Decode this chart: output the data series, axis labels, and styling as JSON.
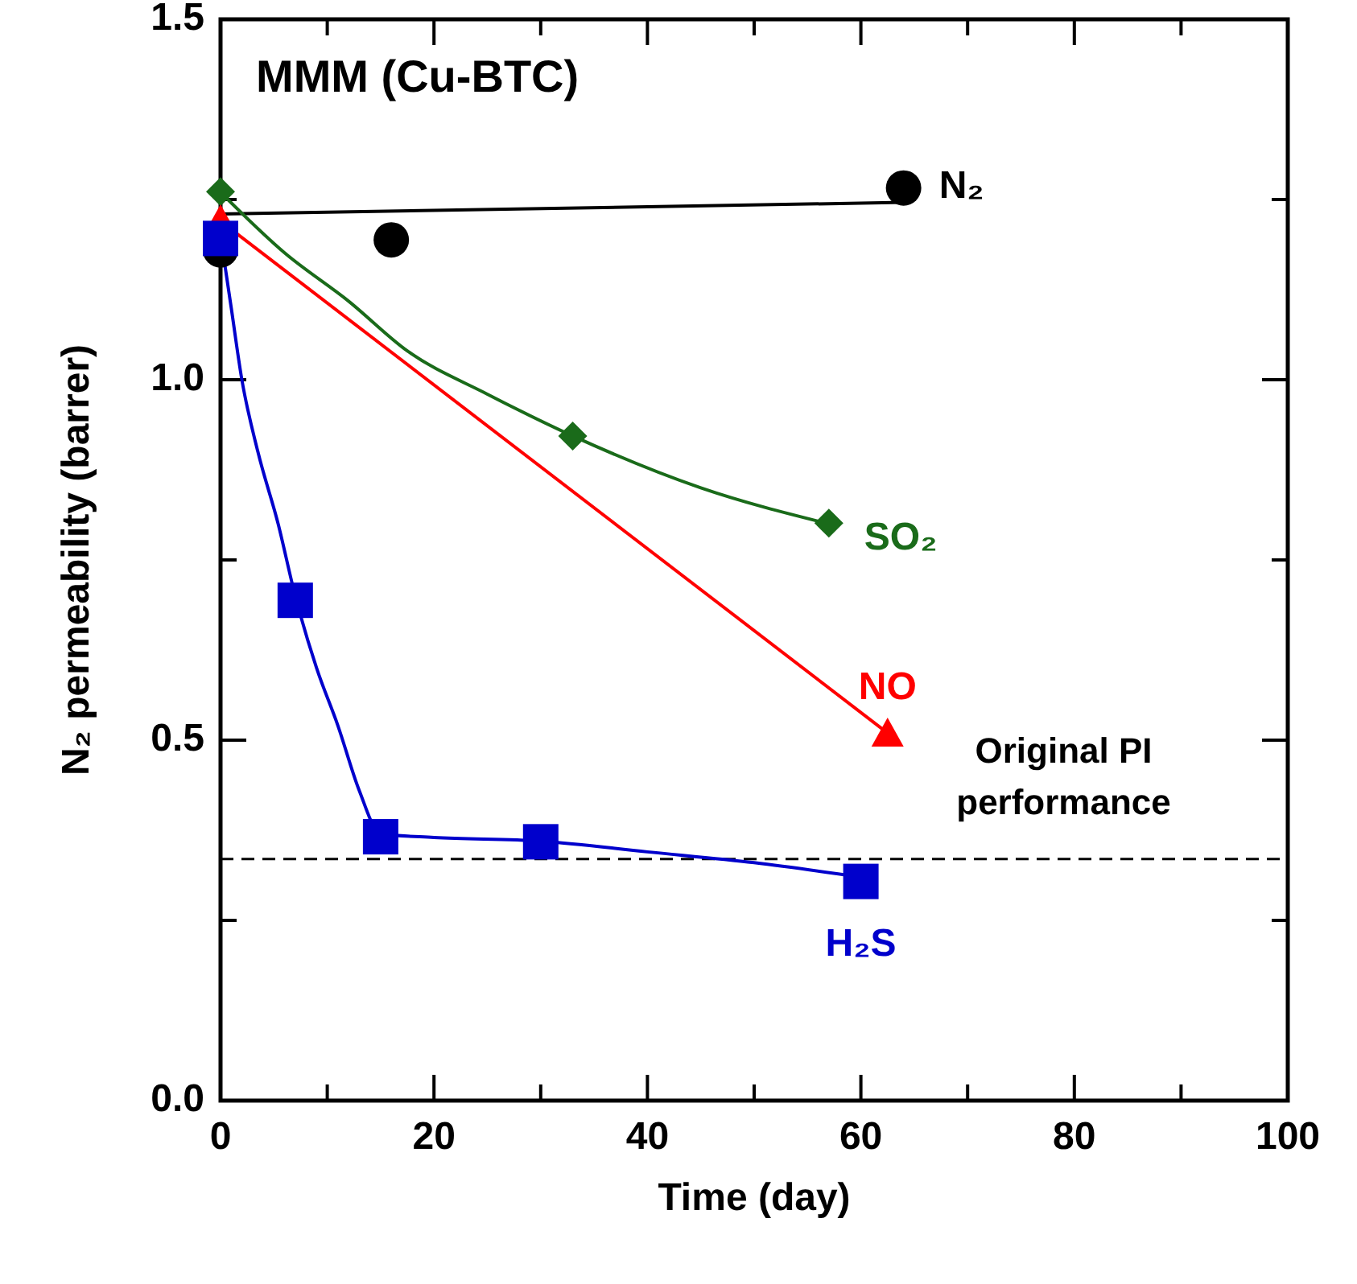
{
  "chart_data": {
    "type": "scatter",
    "title": "MMM (Cu-BTC)",
    "xlabel": "Time (day)",
    "ylabel": "N₂ permeability (barrer)",
    "xlim": [
      0,
      100
    ],
    "xticks": [
      0,
      {
        "value": 10,
        "label": null
      },
      20,
      {
        "value": 30,
        "label": null
      },
      40,
      {
        "value": 50,
        "label": null
      },
      60,
      {
        "value": 70,
        "label": null
      },
      80,
      {
        "value": 90,
        "label": null
      },
      100
    ],
    "ylim": [
      0,
      1.5
    ],
    "yticks": [
      {
        "value": 0,
        "label": "0.0"
      },
      {
        "value": 0.25,
        "label": null
      },
      0.5,
      {
        "value": 0.75,
        "label": null
      },
      {
        "value": 1,
        "label": "1.0"
      },
      {
        "value": 1.25,
        "label": null
      },
      1.5
    ],
    "grid": false,
    "ref_lines": [
      {
        "axis": "y",
        "value": 0.335,
        "label": "Original PI performance",
        "color": "#000000",
        "line_style": "dashed"
      }
    ],
    "series": [
      {
        "type": "line",
        "color": "#000000",
        "marker": "none",
        "x": [
          0,
          64
        ],
        "values": [
          1.23,
          1.246
        ]
      },
      {
        "type": "line",
        "color": "#1a6b1a",
        "marker": "none",
        "x": [
          0,
          6,
          12,
          17.5,
          25,
          33,
          45,
          57
        ],
        "values": [
          1.26,
          1.176,
          1.109,
          1.04,
          0.98,
          0.922,
          0.85,
          0.8
        ]
      },
      {
        "type": "line",
        "color": "#ff0000",
        "marker": "none",
        "x": [
          0,
          62.5
        ],
        "values": [
          1.22,
          0.51
        ]
      },
      {
        "type": "line",
        "color": "#0000cc",
        "marker": "none",
        "x": [
          0,
          1,
          2,
          3.5,
          5.4,
          7,
          9,
          11,
          13,
          15,
          20,
          30,
          40,
          50,
          60
        ],
        "values": [
          1.2,
          1.1,
          1.0,
          0.9,
          0.8,
          0.7,
          0.6,
          0.52,
          0.43,
          0.37,
          0.365,
          0.36,
          0.345,
          0.33,
          0.31
        ]
      },
      {
        "name": "N₂",
        "color": "#000000",
        "marker": "circle",
        "x": [
          0,
          16,
          64
        ],
        "values": [
          1.18,
          1.194,
          1.266
        ]
      },
      {
        "name": "SO₂",
        "color": "#1a6b1a",
        "marker": "diamond",
        "x": [
          0,
          33,
          57
        ],
        "values": [
          1.261,
          0.922,
          0.801
        ]
      },
      {
        "name": "NO",
        "color": "#ff0000",
        "marker": "triangle",
        "x": [
          0,
          62.5
        ],
        "values": [
          1.221,
          0.509
        ]
      },
      {
        "name": "H₂S",
        "color": "#0000cc",
        "marker": "square",
        "x": [
          0,
          7,
          15,
          30,
          60
        ],
        "values": [
          1.196,
          0.694,
          0.366,
          0.359,
          0.304
        ]
      }
    ]
  }
}
